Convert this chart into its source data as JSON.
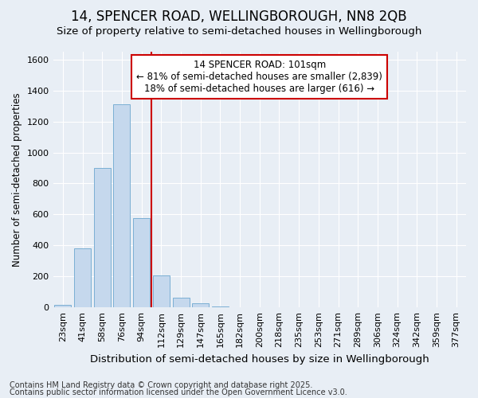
{
  "title": "14, SPENCER ROAD, WELLINGBOROUGH, NN8 2QB",
  "subtitle": "Size of property relative to semi-detached houses in Wellingborough",
  "xlabel": "Distribution of semi-detached houses by size in Wellingborough",
  "ylabel": "Number of semi-detached properties",
  "footnote1": "Contains HM Land Registry data © Crown copyright and database right 2025.",
  "footnote2": "Contains public sector information licensed under the Open Government Licence v3.0.",
  "annotation_title": "14 SPENCER ROAD: 101sqm",
  "annotation_line1": "← 81% of semi-detached houses are smaller (2,839)",
  "annotation_line2": "18% of semi-detached houses are larger (616) →",
  "categories": [
    "23sqm",
    "41sqm",
    "58sqm",
    "76sqm",
    "94sqm",
    "112sqm",
    "129sqm",
    "147sqm",
    "165sqm",
    "182sqm",
    "200sqm",
    "218sqm",
    "235sqm",
    "253sqm",
    "271sqm",
    "289sqm",
    "306sqm",
    "324sqm",
    "342sqm",
    "359sqm",
    "377sqm"
  ],
  "values": [
    15,
    380,
    900,
    1310,
    575,
    205,
    65,
    25,
    5,
    0,
    0,
    0,
    0,
    0,
    0,
    0,
    0,
    0,
    0,
    0,
    0
  ],
  "bar_color": "#c5d8ed",
  "bar_edge_color": "#7bafd4",
  "vline_color": "#cc0000",
  "vline_x": 4.5,
  "bg_color": "#e8eef5",
  "ylim": [
    0,
    1650
  ],
  "yticks": [
    0,
    200,
    400,
    600,
    800,
    1000,
    1200,
    1400,
    1600
  ],
  "title_fontsize": 12,
  "subtitle_fontsize": 9.5,
  "xlabel_fontsize": 9.5,
  "ylabel_fontsize": 8.5,
  "tick_fontsize": 8,
  "annotation_fontsize": 8.5,
  "footnote_fontsize": 7
}
